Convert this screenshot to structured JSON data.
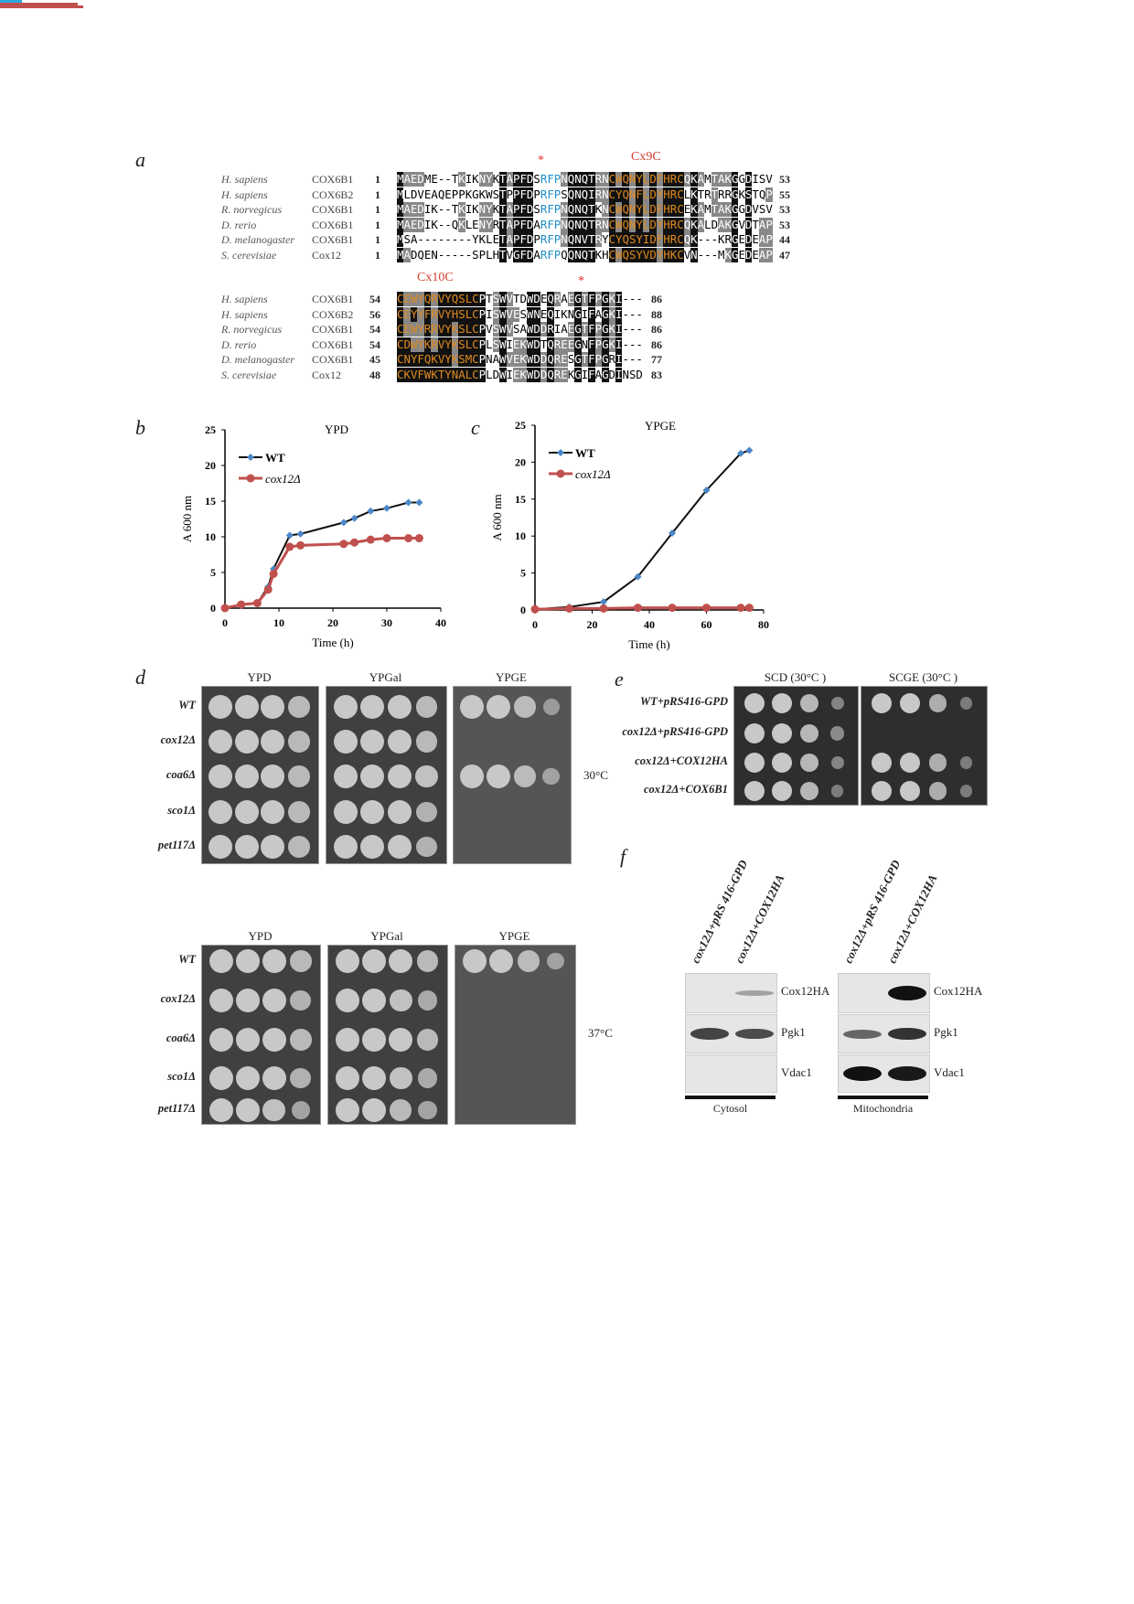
{
  "panel_labels": {
    "a": "a",
    "b": "b",
    "c": "c",
    "d": "d",
    "e": "e",
    "f": "f"
  },
  "alignment": {
    "motifs": {
      "cx9c": "Cx9C",
      "cx10c": "Cx10C",
      "star": "*"
    },
    "colors": {
      "motif": "#e08a1e",
      "rfp": "#1e8fc8",
      "bar_red": "#c0504d",
      "bar_blue": "#2ba8e0"
    },
    "block1": [
      {
        "species": "H. sapiens",
        "gene": "COX6B1",
        "start": "1",
        "seq": "MAEDME--TKIKNYKTAPFDSRFPNQNQTRNCWQNYLDFHRCQKAMTAKGGDISV",
        "end": "53"
      },
      {
        "species": "H. sapiens",
        "gene": "COX6B2",
        "start": "1",
        "seq": "MLDVEAQEPPKGKWSTPPFDPRFPSQNQIRNCYQNFLDYHRCLKTRTRRGKSTQP",
        "end": "55"
      },
      {
        "species": "R. norvegicus",
        "gene": "COX6B1",
        "start": "1",
        "seq": "MAEDIK--TKIKNYKTAPFDSRFPNQNQTKNCWQNYLDFHRCEKAMTAKGGDVSV",
        "end": "53"
      },
      {
        "species": "D. rerio",
        "gene": "COX6B1",
        "start": "1",
        "seq": "MAEDIK--QKLENYRTAPFDARFPNQNQTRNCWQNYLDYHRCQKALDAKGVDTAP",
        "end": "53"
      },
      {
        "species": "D. melanogaster",
        "gene": "COX6B1",
        "start": "1",
        "seq": "MSA--------YKLETAPFDPRFPNQNVTRYCYQSYIDFHRCQK---KRGEDEAP",
        "end": "44"
      },
      {
        "species": "S. cerevisiae",
        "gene": "Cox12",
        "start": "1",
        "seq": "MADQEN-----SPLHTVGFDARFPQQNQTKHCWQSYVDYHKCVN---MKGEDEAP",
        "end": "47"
      }
    ],
    "block2": [
      {
        "species": "H. sapiens",
        "gene": "COX6B1",
        "start": "54",
        "seq": "CEWYQRVYQSLCPTSWVTDWDEQRAEGTFPGKI---",
        "end": "86"
      },
      {
        "species": "H. sapiens",
        "gene": "COX6B2",
        "start": "56",
        "seq": "CEYYFRVYHSLCPISWVESWNEQIKNGIFAGKI---",
        "end": "88"
      },
      {
        "species": "R. norvegicus",
        "gene": "COX6B1",
        "start": "54",
        "seq": "CEWYRRVYKSLCPVSWVSAWDDRIAEGTFPGKI---",
        "end": "86"
      },
      {
        "species": "D. rerio",
        "gene": "COX6B1",
        "start": "54",
        "seq": "CDWYKRVYKSLCPLSWIEKWDTQREEGNFPGKI---",
        "end": "86"
      },
      {
        "species": "D. melanogaster",
        "gene": "COX6B1",
        "start": "45",
        "seq": "CNYFQKVYKSMCPNAWVEKWDDQRESGTFPGRI---",
        "end": "77"
      },
      {
        "species": "S. cerevisiae",
        "gene": "Cox12",
        "start": "48",
        "seq": "CKVFWKTYNALCPLDWIEKWDDQREKGIFAGDINSD",
        "end": "83"
      }
    ]
  },
  "chart_data": [
    {
      "type": "line",
      "title": "YPD",
      "xlabel": "Time (h)",
      "ylabel": "A 600 nm",
      "xlim": [
        0,
        40
      ],
      "ylim": [
        0,
        25
      ],
      "xticks": [
        "0",
        "10",
        "20",
        "30",
        "40"
      ],
      "yticks": [
        "0",
        "5",
        "10",
        "15",
        "20",
        "25"
      ],
      "legend": "top-left",
      "grid": false,
      "series": [
        {
          "name": "WT",
          "color": "#4a86c8",
          "marker": "diamond",
          "x": [
            0,
            3,
            6,
            8,
            9,
            12,
            14,
            22,
            24,
            27,
            30,
            34,
            36
          ],
          "y": [
            0,
            0.5,
            0.7,
            3,
            5.5,
            10.2,
            10.4,
            12,
            12.6,
            13.6,
            14,
            14.8,
            14.8
          ]
        },
        {
          "name": "cox12Δ",
          "color": "#c0504d",
          "marker": "circle",
          "x": [
            0,
            3,
            6,
            8,
            9,
            12,
            14,
            22,
            24,
            27,
            30,
            34,
            36
          ],
          "y": [
            0,
            0.5,
            0.7,
            2.6,
            4.8,
            8.6,
            8.8,
            9,
            9.2,
            9.6,
            9.8,
            9.8,
            9.8
          ]
        }
      ]
    },
    {
      "type": "line",
      "title": "YPGE",
      "xlabel": "Time (h)",
      "ylabel": "A 600 nm",
      "xlim": [
        0,
        80
      ],
      "ylim": [
        0,
        25
      ],
      "xticks": [
        "0",
        "20",
        "40",
        "60",
        "80"
      ],
      "yticks": [
        "0",
        "5",
        "10",
        "15",
        "20",
        "25"
      ],
      "legend": "top-left",
      "grid": false,
      "series": [
        {
          "name": "WT",
          "color": "#4a86c8",
          "marker": "diamond",
          "x": [
            0,
            12,
            24,
            36,
            48,
            60,
            72,
            75
          ],
          "y": [
            0.1,
            0.4,
            1.1,
            4.5,
            10.4,
            16.2,
            21.2,
            21.6
          ]
        },
        {
          "name": "cox12Δ",
          "color": "#c0504d",
          "marker": "circle",
          "x": [
            0,
            12,
            24,
            36,
            48,
            60,
            72,
            75
          ],
          "y": [
            0.1,
            0.2,
            0.2,
            0.3,
            0.3,
            0.3,
            0.3,
            0.3
          ]
        }
      ]
    }
  ],
  "spot_assays": [
    {
      "temperature": "30°C",
      "media": [
        "YPD",
        "YPGal",
        "YPGE"
      ],
      "strains": [
        "WT",
        "cox12Δ",
        "coa6Δ",
        "sco1Δ",
        "pet117Δ"
      ],
      "growth": [
        [
          [
            1,
            1,
            1,
            0.8
          ],
          [
            1,
            1,
            1,
            0.8
          ],
          [
            1,
            1,
            1,
            0.8
          ],
          [
            1,
            1,
            1,
            0.8
          ],
          [
            1,
            1,
            1,
            0.8
          ]
        ],
        [
          [
            1,
            1,
            1,
            0.8
          ],
          [
            1,
            1,
            1,
            0.8
          ],
          [
            1,
            1,
            1,
            0.9
          ],
          [
            1,
            1,
            1,
            0.7
          ],
          [
            1,
            1,
            1,
            0.7
          ]
        ],
        [
          [
            1,
            1,
            0.8,
            0.3
          ],
          [
            0,
            0,
            0,
            0
          ],
          [
            1,
            1,
            0.8,
            0.4
          ],
          [
            0,
            0,
            0,
            0
          ],
          [
            0,
            0,
            0,
            0
          ]
        ]
      ]
    },
    {
      "temperature": "37°C",
      "media": [
        "YPD",
        "YPGal",
        "YPGE"
      ],
      "strains": [
        "WT",
        "cox12Δ",
        "coa6Δ",
        "sco1Δ",
        "pet117Δ"
      ],
      "growth": [
        [
          [
            1,
            1,
            1,
            0.8
          ],
          [
            1,
            1,
            1,
            0.7
          ],
          [
            1,
            1,
            1,
            0.8
          ],
          [
            1,
            1,
            1,
            0.7
          ],
          [
            1,
            1,
            0.9,
            0.5
          ]
        ],
        [
          [
            1,
            1,
            1,
            0.8
          ],
          [
            1,
            1,
            0.9,
            0.6
          ],
          [
            1,
            1,
            1,
            0.8
          ],
          [
            1,
            1,
            0.9,
            0.6
          ],
          [
            1,
            1,
            0.8,
            0.5
          ]
        ],
        [
          [
            1,
            1,
            0.8,
            0.4
          ],
          [
            0,
            0,
            0,
            0
          ],
          [
            0,
            0,
            0,
            0
          ],
          [
            0,
            0,
            0,
            0
          ],
          [
            0,
            0,
            0,
            0
          ]
        ]
      ]
    },
    {
      "temperature": "",
      "media": [
        "SCD (30°C )",
        "SCGE (30°C )"
      ],
      "strains": [
        "WT+pRS416-GPD",
        "cox12Δ+pRS416-GPD",
        "cox12Δ+COX12HA",
        "cox12Δ+COX6B1"
      ],
      "growth": [
        [
          [
            1,
            1,
            0.8,
            0.2
          ],
          [
            1,
            1,
            0.8,
            0.3
          ],
          [
            1,
            1,
            0.8,
            0.2
          ],
          [
            1,
            1,
            0.8,
            0.1
          ]
        ],
        [
          [
            1,
            1,
            0.7,
            0.1
          ],
          [
            0,
            0,
            0,
            0
          ],
          [
            1,
            1,
            0.7,
            0.1
          ],
          [
            1,
            1,
            0.7,
            0.1
          ]
        ]
      ]
    }
  ],
  "western": {
    "lanes": [
      "cox12Δ+pRS 416-GPD",
      "cox12Δ+COX12HA"
    ],
    "fractions": [
      {
        "name": "Cytosol",
        "proteins": [
          "Cox12HA",
          "Pgk1",
          "Vdac1"
        ],
        "intensity": [
          [
            0,
            0.15
          ],
          [
            0.7,
            0.65
          ],
          [
            0,
            0
          ]
        ]
      },
      {
        "name": "Mitochondria",
        "proteins": [
          "Cox12HA",
          "Pgk1",
          "Vdac1"
        ],
        "intensity": [
          [
            0,
            1
          ],
          [
            0.5,
            0.8
          ],
          [
            1,
            0.95
          ]
        ]
      }
    ]
  }
}
